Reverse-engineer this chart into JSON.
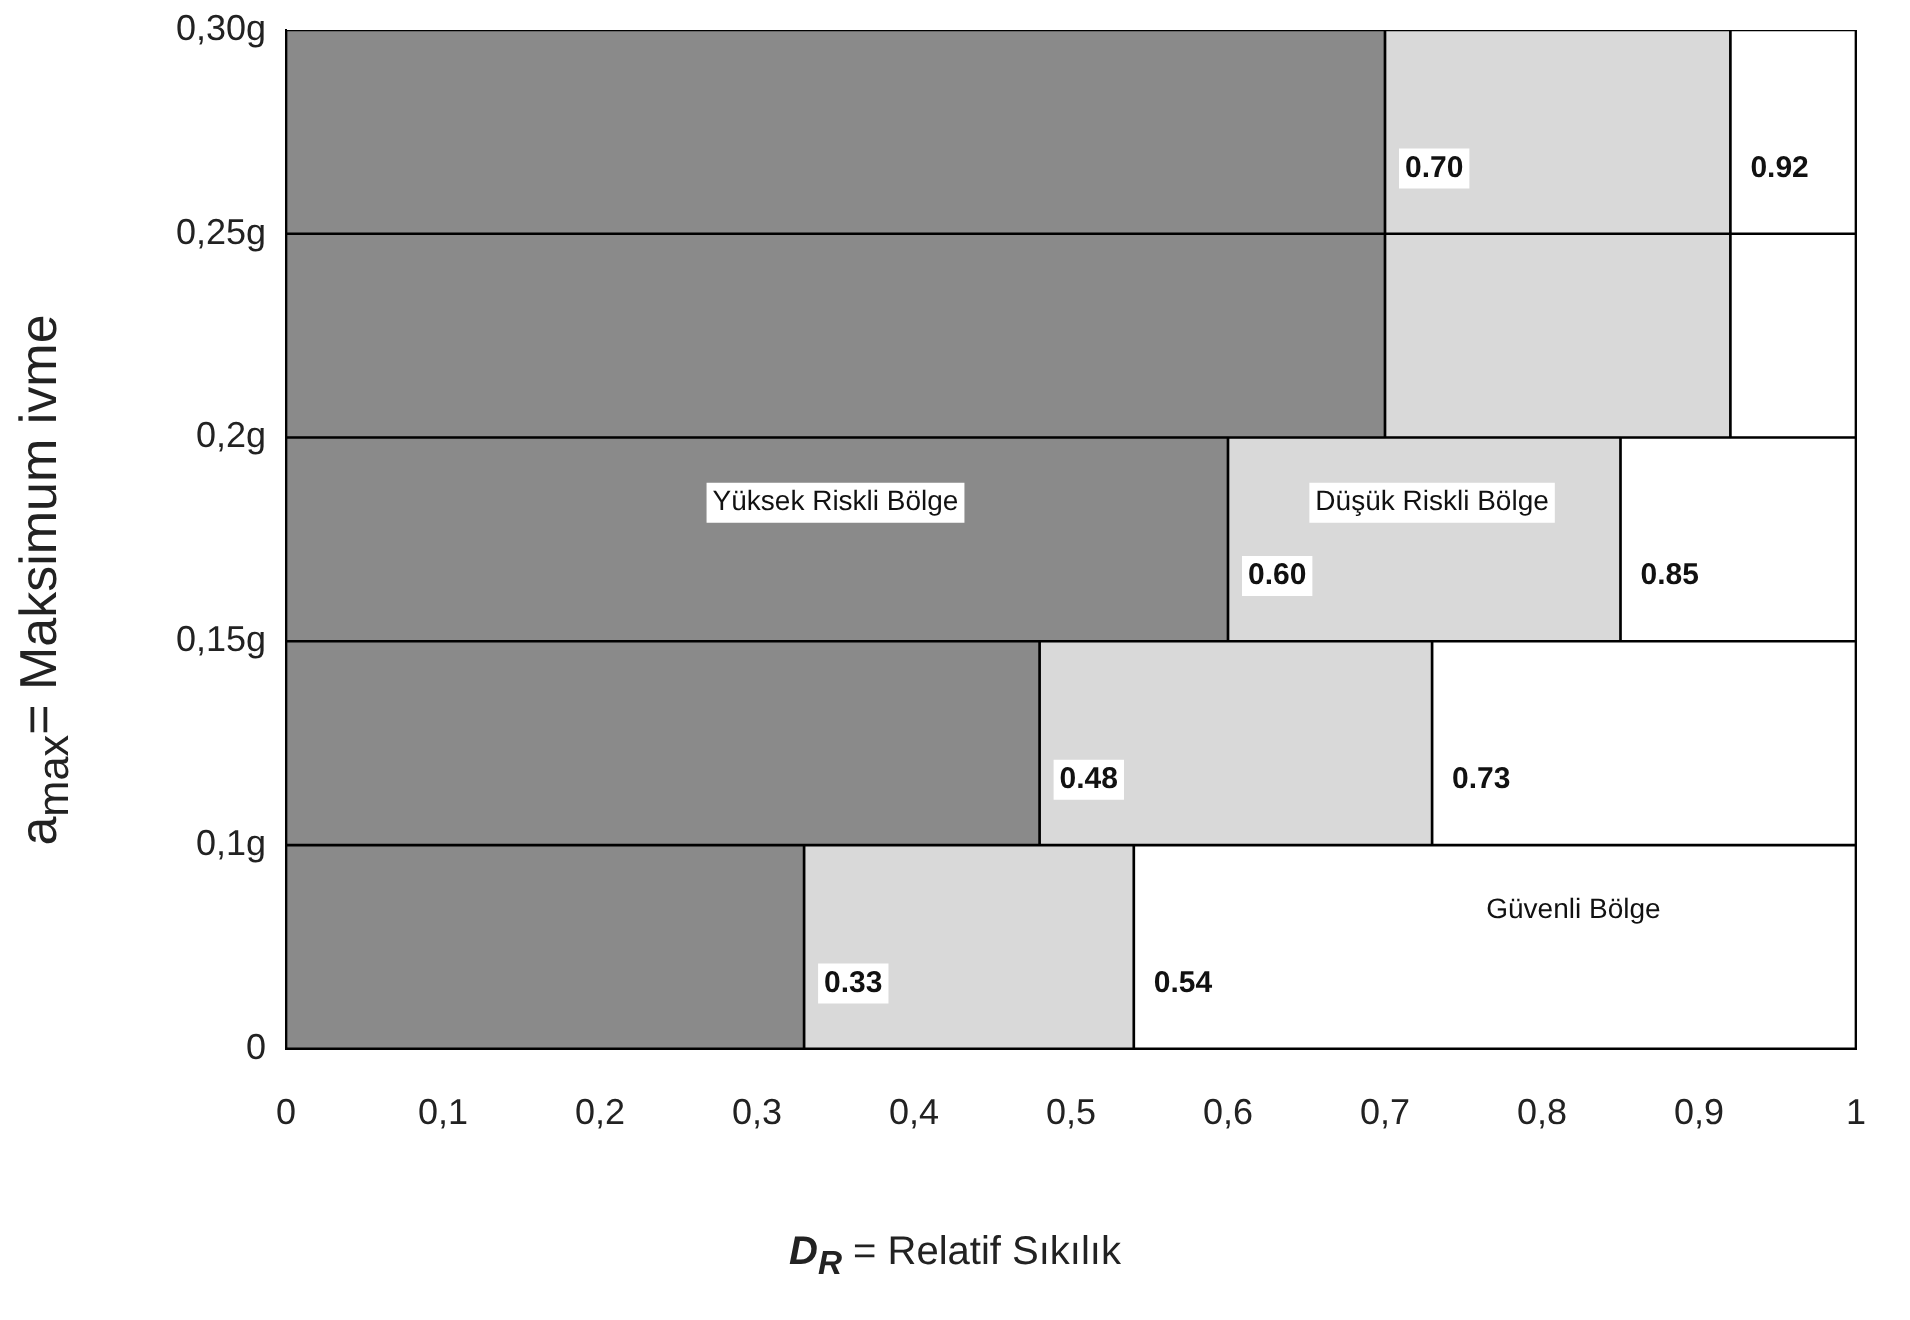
{
  "chart_data": {
    "type": "bar",
    "orientation": "horizontal",
    "stacked": true,
    "xlabel": "D$_{R}$ = Relatif Sıkılık",
    "ylabel": "a$_{max}$= Maksimum ivme",
    "categories": [
      null,
      null,
      null,
      null,
      null
    ],
    "annotations": [
      "0,30g",
      "0,25g",
      "0,2g",
      "0,15g",
      "0,1g",
      "0",
      {
        "text": "0.70",
        "x": 0.7
      },
      {
        "text": "0.92",
        "x": 0.92
      },
      {
        "text": "0.60",
        "x": 0.6
      },
      {
        "text": "0.85",
        "x": 0.85
      },
      {
        "text": "0.48",
        "x": 0.48
      },
      {
        "text": "0.73",
        "x": 0.73
      },
      {
        "text": "0.33",
        "x": 0.33
      },
      {
        "text": "0.54",
        "x": 0.54
      }
    ],
    "series": [
      {
        "name": "Yüksek Riskli Bölge",
        "color": "#8a8a8a",
        "values": [
          0.7,
          0.7,
          0.6,
          0.48,
          0.33
        ]
      },
      {
        "name": "Düşük Riskli Bölge",
        "color": "#d9d9d9",
        "values": [
          0.22,
          0.22,
          0.25,
          0.25,
          0.21
        ]
      },
      {
        "name": "Güvenli Bölge",
        "color": "#ffffff",
        "values": [
          0.08,
          0.08,
          0.15,
          0.27,
          0.46
        ]
      }
    ],
    "xlim": [
      0,
      1
    ],
    "xticks": [
      {
        "value": 0,
        "label": "0"
      },
      {
        "value": 0.1,
        "label": "0,1"
      },
      {
        "value": 0.2,
        "label": "0,2"
      },
      {
        "value": 0.3,
        "label": "0,3"
      },
      {
        "value": 0.4,
        "label": "0,4"
      },
      {
        "value": 0.5,
        "label": "0,5"
      },
      {
        "value": 0.6,
        "label": "0,6"
      },
      {
        "value": 0.7,
        "label": "0,7"
      },
      {
        "value": 0.8,
        "label": "0,8"
      },
      {
        "value": 0.9,
        "label": "0,9"
      },
      {
        "value": 1,
        "label": "1"
      }
    ],
    "grid": false,
    "legend": false
  }
}
